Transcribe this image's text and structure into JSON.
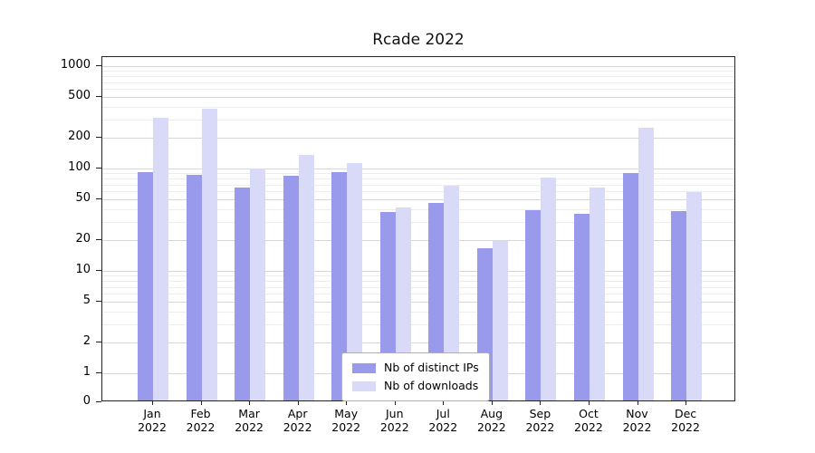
{
  "chart_data": {
    "type": "bar",
    "title": "Rcade 2022",
    "categories": [
      "Jan 2022",
      "Feb 2022",
      "Mar 2022",
      "Apr 2022",
      "May 2022",
      "Jun 2022",
      "Jul 2022",
      "Aug 2022",
      "Sep 2022",
      "Oct 2022",
      "Nov 2022",
      "Dec 2022"
    ],
    "series": [
      {
        "name": "Nb of distinct IPs",
        "color": "#9a9aec",
        "values": [
          88,
          84,
          63,
          82,
          88,
          36,
          44,
          16,
          38,
          35,
          86,
          37
        ]
      },
      {
        "name": "Nb of downloads",
        "color": "#d9d9f8",
        "values": [
          300,
          370,
          96,
          130,
          108,
          40,
          65,
          19,
          78,
          62,
          240,
          56
        ]
      }
    ],
    "xlabel": "",
    "ylabel": "",
    "yscale": "symlog",
    "yticks": [
      0,
      1,
      2,
      5,
      10,
      20,
      50,
      100,
      200,
      500,
      1000
    ],
    "ylim": [
      0,
      1200
    ],
    "grid": true,
    "legend_position": "lower center"
  }
}
